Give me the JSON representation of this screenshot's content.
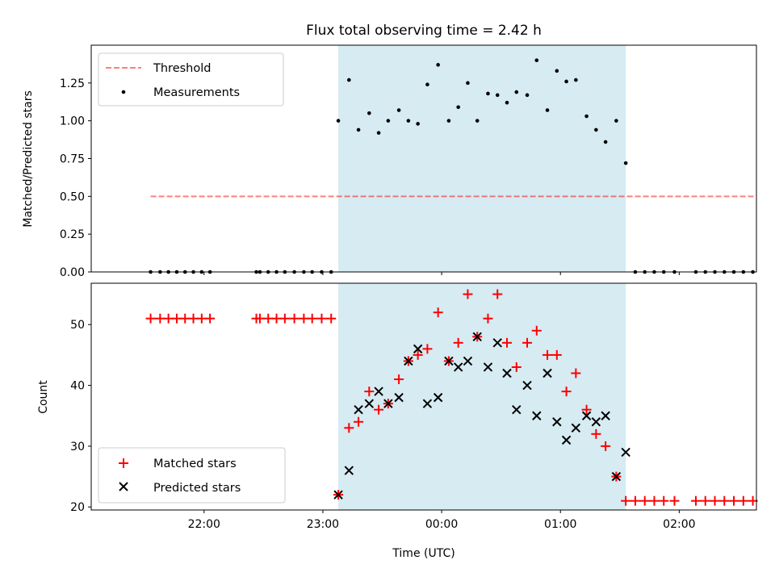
{
  "chart_data": [
    {
      "type": "scatter",
      "title": "Flux total observing time = 2.42 h",
      "xlabel": "",
      "ylabel": "Matched/Predicted stars",
      "x_unit": "hours since 00:00 UTC",
      "xlim": [
        -2.95,
        2.65
      ],
      "ylim": [
        0.0,
        1.5
      ],
      "yticks": [
        0.0,
        0.25,
        0.5,
        0.75,
        1.0,
        1.25
      ],
      "ytick_labels": [
        "0.00",
        "0.25",
        "0.50",
        "0.75",
        "1.00",
        "1.25"
      ],
      "shaded_interval": [
        -0.87,
        1.55
      ],
      "shade_color": "#add8e6",
      "legend": [
        "Threshold",
        "Measurements"
      ],
      "legend_position": "upper left",
      "threshold": {
        "name": "Threshold",
        "value": 0.5,
        "x_range": [
          -2.45,
          2.65
        ],
        "color": "#ff0000",
        "style": "dashed"
      },
      "series": [
        {
          "name": "Measurements",
          "color": "#000000",
          "marker": "dot",
          "x": [
            -2.45,
            -2.37,
            -2.3,
            -2.23,
            -2.16,
            -2.09,
            -2.02,
            -1.95,
            -1.56,
            -1.53,
            -1.46,
            -1.39,
            -1.32,
            -1.24,
            -1.16,
            -1.09,
            -1.01,
            -0.93,
            -0.87,
            -0.78,
            -0.7,
            -0.61,
            -0.53,
            -0.45,
            -0.36,
            -0.28,
            -0.2,
            -0.12,
            -0.03,
            0.06,
            0.14,
            0.22,
            0.3,
            0.39,
            0.47,
            0.55,
            0.63,
            0.72,
            0.8,
            0.89,
            0.97,
            1.05,
            1.13,
            1.22,
            1.3,
            1.38,
            1.47,
            1.55,
            1.63,
            1.71,
            1.79,
            1.87,
            1.96,
            2.14,
            2.22,
            2.3,
            2.38,
            2.46,
            2.54,
            2.62
          ],
          "y": [
            0,
            0,
            0,
            0,
            0,
            0,
            0,
            0,
            0,
            0,
            0,
            0,
            0,
            0,
            0,
            0,
            0,
            0,
            1.0,
            1.27,
            0.94,
            1.05,
            0.92,
            1.0,
            1.07,
            1.0,
            0.98,
            1.24,
            1.37,
            1.0,
            1.09,
            1.25,
            1.0,
            1.18,
            1.17,
            1.12,
            1.19,
            1.17,
            1.4,
            1.07,
            1.33,
            1.26,
            1.27,
            1.03,
            0.94,
            0.86,
            1.0,
            0.72,
            0,
            0,
            0,
            0,
            0,
            0,
            0,
            0,
            0,
            0,
            0,
            0
          ]
        }
      ]
    },
    {
      "type": "scatter",
      "title": "",
      "xlabel": "Time (UTC)",
      "ylabel": "Count",
      "x_unit": "hours since 00:00 UTC",
      "xlim": [
        -2.95,
        2.65
      ],
      "ylim": [
        19.5,
        56.8
      ],
      "xticks": [
        -2,
        -1,
        0,
        1,
        2
      ],
      "xtick_labels": [
        "22:00",
        "23:00",
        "00:00",
        "01:00",
        "02:00"
      ],
      "yticks": [
        20,
        30,
        40,
        50
      ],
      "ytick_labels": [
        "20",
        "30",
        "40",
        "50"
      ],
      "shaded_interval": [
        -0.87,
        1.55
      ],
      "shade_color": "#add8e6",
      "legend": [
        "Matched stars",
        "Predicted stars"
      ],
      "legend_position": "lower left",
      "series": [
        {
          "name": "Matched stars",
          "color": "#ff0000",
          "marker": "plus",
          "x": [
            -2.45,
            -2.37,
            -2.3,
            -2.23,
            -2.16,
            -2.09,
            -2.02,
            -1.95,
            -1.56,
            -1.53,
            -1.46,
            -1.39,
            -1.32,
            -1.24,
            -1.16,
            -1.09,
            -1.01,
            -0.93,
            -0.87,
            -0.78,
            -0.7,
            -0.61,
            -0.53,
            -0.45,
            -0.36,
            -0.28,
            -0.2,
            -0.12,
            -0.03,
            0.06,
            0.14,
            0.22,
            0.3,
            0.39,
            0.47,
            0.55,
            0.63,
            0.72,
            0.8,
            0.89,
            0.97,
            1.05,
            1.13,
            1.22,
            1.3,
            1.38,
            1.47,
            1.55,
            1.63,
            1.71,
            1.79,
            1.87,
            1.96,
            2.14,
            2.22,
            2.3,
            2.38,
            2.46,
            2.54,
            2.62
          ],
          "y": [
            51,
            51,
            51,
            51,
            51,
            51,
            51,
            51,
            51,
            51,
            51,
            51,
            51,
            51,
            51,
            51,
            51,
            51,
            22,
            33,
            34,
            39,
            36,
            37,
            41,
            44,
            45,
            46,
            52,
            44,
            47,
            55,
            48,
            51,
            55,
            47,
            43,
            47,
            49,
            45,
            45,
            39,
            42,
            36,
            32,
            30,
            25,
            21,
            21,
            21,
            21,
            21,
            21,
            21,
            21,
            21,
            21,
            21,
            21,
            21
          ]
        },
        {
          "name": "Predicted stars",
          "color": "#000000",
          "marker": "x",
          "x": [
            -0.87,
            -0.78,
            -0.7,
            -0.61,
            -0.53,
            -0.45,
            -0.36,
            -0.28,
            -0.2,
            -0.12,
            -0.03,
            0.06,
            0.14,
            0.22,
            0.3,
            0.39,
            0.47,
            0.55,
            0.63,
            0.72,
            0.8,
            0.89,
            0.97,
            1.05,
            1.13,
            1.22,
            1.3,
            1.38,
            1.47,
            1.55
          ],
          "y": [
            22,
            26,
            36,
            37,
            39,
            37,
            38,
            44,
            46,
            37,
            38,
            44,
            43,
            44,
            48,
            43,
            47,
            42,
            36,
            40,
            35,
            42,
            34,
            31,
            33,
            35,
            34,
            35,
            25,
            29
          ]
        }
      ]
    }
  ]
}
